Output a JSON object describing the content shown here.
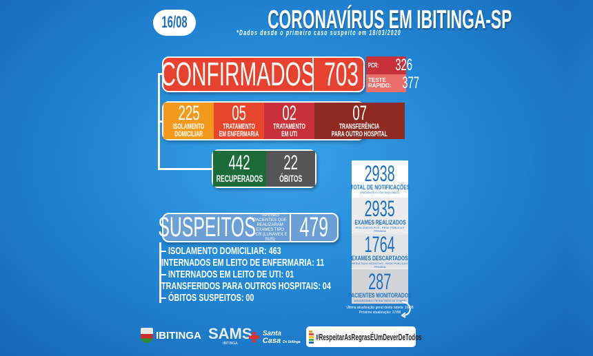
{
  "header": {
    "date": "16/08",
    "title": "CORONAVÍRUS EM IBITINGA-SP",
    "subtitle": "*Dados desde o primeiro caso suspeito em 18/03/2020"
  },
  "confirmed": {
    "label": "CONFIRMADOS",
    "total": "703",
    "pcr_label": "PCR:",
    "pcr": "326",
    "rapid_label_1": "TESTE",
    "rapid_label_2": "RÁPIDO:",
    "rapid": "377"
  },
  "status": [
    {
      "value": "225",
      "l1": "ISOLAMENTO",
      "l2": "DOMICILIAR",
      "color": "#f39a1e"
    },
    {
      "value": "05",
      "l1": "TRATAMENTO",
      "l2": "EM ENFERMARIA",
      "color": "#e8452d"
    },
    {
      "value": "02",
      "l1": "TRATAMENTO",
      "l2": "EM UTI",
      "color": "#c9303a"
    },
    {
      "value": "07",
      "l1": "TRANSFERÊNCIA",
      "l2": "PARA OUTRO HOSPITAL",
      "color": "#8e2a22"
    }
  ],
  "outcomes": [
    {
      "value": "442",
      "label": "RECUPERADOS",
      "color": "#1e6b3a"
    },
    {
      "value": "22",
      "label": "ÓBITOS",
      "color": "#555558"
    }
  ],
  "suspects": {
    "label": "SUSPEITOS",
    "note": "*APENAS PACIENTES QUE REALIZARAM EXAMES TIPO PCR (LUNAVEX E SUS)",
    "total": "479",
    "items": [
      "ISOLAMENTO DOMICILIAR: 463",
      "INTERNADOS EM LEITO DE ENFERMARIA: 11",
      "INTERNADOS EM LEITO DE UTI: 01",
      "TRANSFERIDOS PARA OUTROS HOSPITAIS: 04",
      "ÓBITOS SUSPEITOS: 00"
    ]
  },
  "stats": [
    {
      "value": "2938",
      "label": "TOTAL DE NOTIFICAÇÕES",
      "note": "(PACIENTES COM SINTOMAS)"
    },
    {
      "value": "2935",
      "label": "EXAMES REALIZADOS",
      "note": "REALIZADOS PCR - REDE PÚBLICA E PRIVADA"
    },
    {
      "value": "1764",
      "label": "EXAMES DESCARTADOS",
      "note": "RESULTADO NEGATIVO - REDE PÚBLICA E PRIVADA"
    },
    {
      "value": "287",
      "label": "PACIENTES MONITORADOS",
      "note": "AGUARDANDO RESULTADO DE EXAME"
    }
  ],
  "update": {
    "line1": "Última atualização geral desta tabela: 16/08",
    "line2": "Próxima atualização: 17/08"
  },
  "footer": {
    "logo1": "IBITINGA",
    "logo2": "SAMS",
    "logo2_sub": "IBITINGA",
    "logo3a": "Santa",
    "logo3b": "Casa",
    "logo3c": "De Ibitinga",
    "hashtag": "#RespeitarAsRegrasÉUmDeverDeTodos"
  }
}
